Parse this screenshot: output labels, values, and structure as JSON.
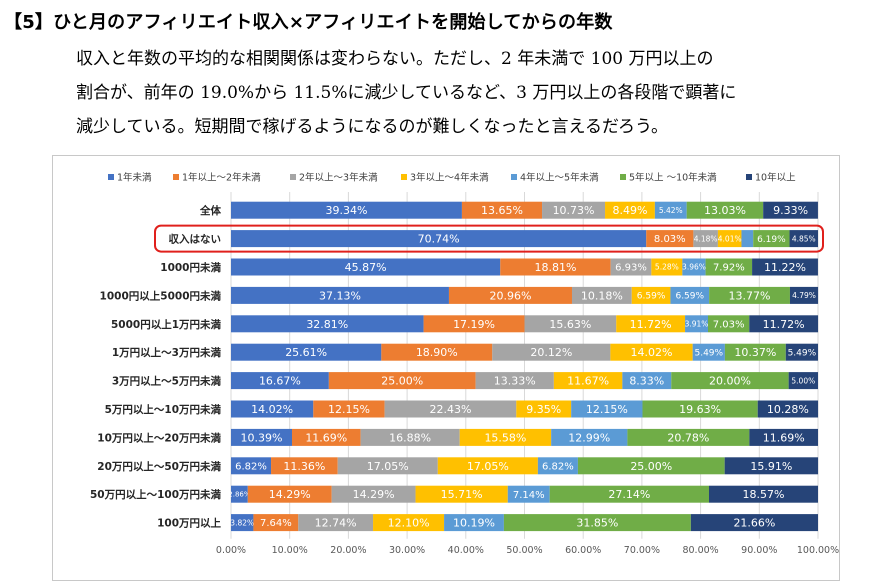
{
  "page": {
    "heading": "【5】ひと月のアフィリエイト収入×アフィリエイトを開始してからの年数",
    "paragraph_lines": [
      "収入と年数の平均的な相関関係は変わらない。ただし、2 年未満で 100 万円以上の",
      "割合が、前年の 19.0%から 11.5%に減少しているなど、3 万円以上の各段階で顕著に",
      "減少している。短期間で稼げるようになるのが難しくなったと言えるだろう。"
    ]
  },
  "chart_data": {
    "type": "bar",
    "orientation": "horizontal",
    "stacked": true,
    "legend_position": "top",
    "grid": true,
    "xlim": [
      0,
      100
    ],
    "xticks": [
      "0.00%",
      "10.00%",
      "20.00%",
      "30.00%",
      "40.00%",
      "50.00%",
      "60.00%",
      "70.00%",
      "80.00%",
      "90.00%",
      "100.00%"
    ],
    "categories": [
      "全体",
      "収入はない",
      "1000円未満",
      "1000円以上5000円未満",
      "5000円以上1万円未満",
      "1万円以上～3万円未満",
      "3万円以上～5万円未満",
      "5万円以上～10万円未満",
      "10万円以上～20万円未満",
      "20万円以上～50万円未満",
      "50万円以上～100万円未満",
      "100万円以上"
    ],
    "highlighted_category": "収入はない",
    "highlight_color": "#e0201c",
    "series": [
      {
        "name": "1年未満",
        "color": "#4472c4",
        "values": [
          39.34,
          70.74,
          45.87,
          37.13,
          32.81,
          25.61,
          16.67,
          14.02,
          10.39,
          6.82,
          2.86,
          3.82
        ]
      },
      {
        "name": "1年以上～2年未満",
        "color": "#ed7d31",
        "values": [
          13.65,
          8.03,
          18.81,
          20.96,
          17.19,
          18.9,
          25.0,
          12.15,
          11.69,
          11.36,
          14.29,
          7.64
        ]
      },
      {
        "name": "2年以上～3年未満",
        "color": "#a5a5a5",
        "values": [
          10.73,
          4.18,
          6.93,
          10.18,
          15.63,
          20.12,
          13.33,
          22.43,
          16.88,
          17.05,
          14.29,
          12.74
        ]
      },
      {
        "name": "3年以上～4年未満",
        "color": "#ffc000",
        "values": [
          8.49,
          4.01,
          5.28,
          6.59,
          11.72,
          14.02,
          11.67,
          9.35,
          15.58,
          17.05,
          15.71,
          12.1
        ]
      },
      {
        "name": "4年以上～5年未満",
        "color": "#5b9bd5",
        "values": [
          5.42,
          2.0,
          3.96,
          6.59,
          3.91,
          5.49,
          8.33,
          12.15,
          12.99,
          6.82,
          7.14,
          10.19
        ]
      },
      {
        "name": "5年以上 ～10年未満",
        "color": "#70ad47",
        "values": [
          13.03,
          6.19,
          7.92,
          13.77,
          7.03,
          10.37,
          20.0,
          19.63,
          20.78,
          25.0,
          27.14,
          31.85
        ]
      },
      {
        "name": "10年以上",
        "color": "#264478",
        "values": [
          9.33,
          4.85,
          11.22,
          4.79,
          11.72,
          5.49,
          5.0,
          10.28,
          11.69,
          15.91,
          18.57,
          21.66
        ]
      }
    ],
    "data_labels": [
      [
        "39.34%",
        "13.65%",
        "10.73%",
        "8.49%",
        "5.42%",
        "13.03%",
        "9.33%"
      ],
      [
        "70.74%",
        "8.03%",
        "4.18%",
        "4.01%",
        "",
        "6.19%",
        "4.85%"
      ],
      [
        "45.87%",
        "18.81%",
        "6.93%",
        "5.28%",
        "3.96%",
        "7.92%",
        "11.22%"
      ],
      [
        "37.13%",
        "20.96%",
        "10.18%",
        "6.59%",
        "6.59%",
        "13.77%",
        "4.79%"
      ],
      [
        "32.81%",
        "17.19%",
        "15.63%",
        "11.72%",
        "3.91%",
        "7.03%",
        "11.72%"
      ],
      [
        "25.61%",
        "18.90%",
        "20.12%",
        "14.02%",
        "5.49%",
        "10.37%",
        "5.49%"
      ],
      [
        "16.67%",
        "25.00%",
        "13.33%",
        "11.67%",
        "8.33%",
        "20.00%",
        "5.00%"
      ],
      [
        "14.02%",
        "12.15%",
        "22.43%",
        "9.35%",
        "12.15%",
        "19.63%",
        "10.28%"
      ],
      [
        "10.39%",
        "11.69%",
        "16.88%",
        "15.58%",
        "12.99%",
        "20.78%",
        "11.69%"
      ],
      [
        "6.82%",
        "11.36%",
        "17.05%",
        "17.05%",
        "6.82%",
        "25.00%",
        "15.91%"
      ],
      [
        "2.86%",
        "14.29%",
        "14.29%",
        "15.71%",
        "7.14%",
        "27.14%",
        "18.57%"
      ],
      [
        "3.82%",
        "7.64%",
        "12.74%",
        "12.10%",
        "10.19%",
        "31.85%",
        "21.66%"
      ]
    ]
  }
}
